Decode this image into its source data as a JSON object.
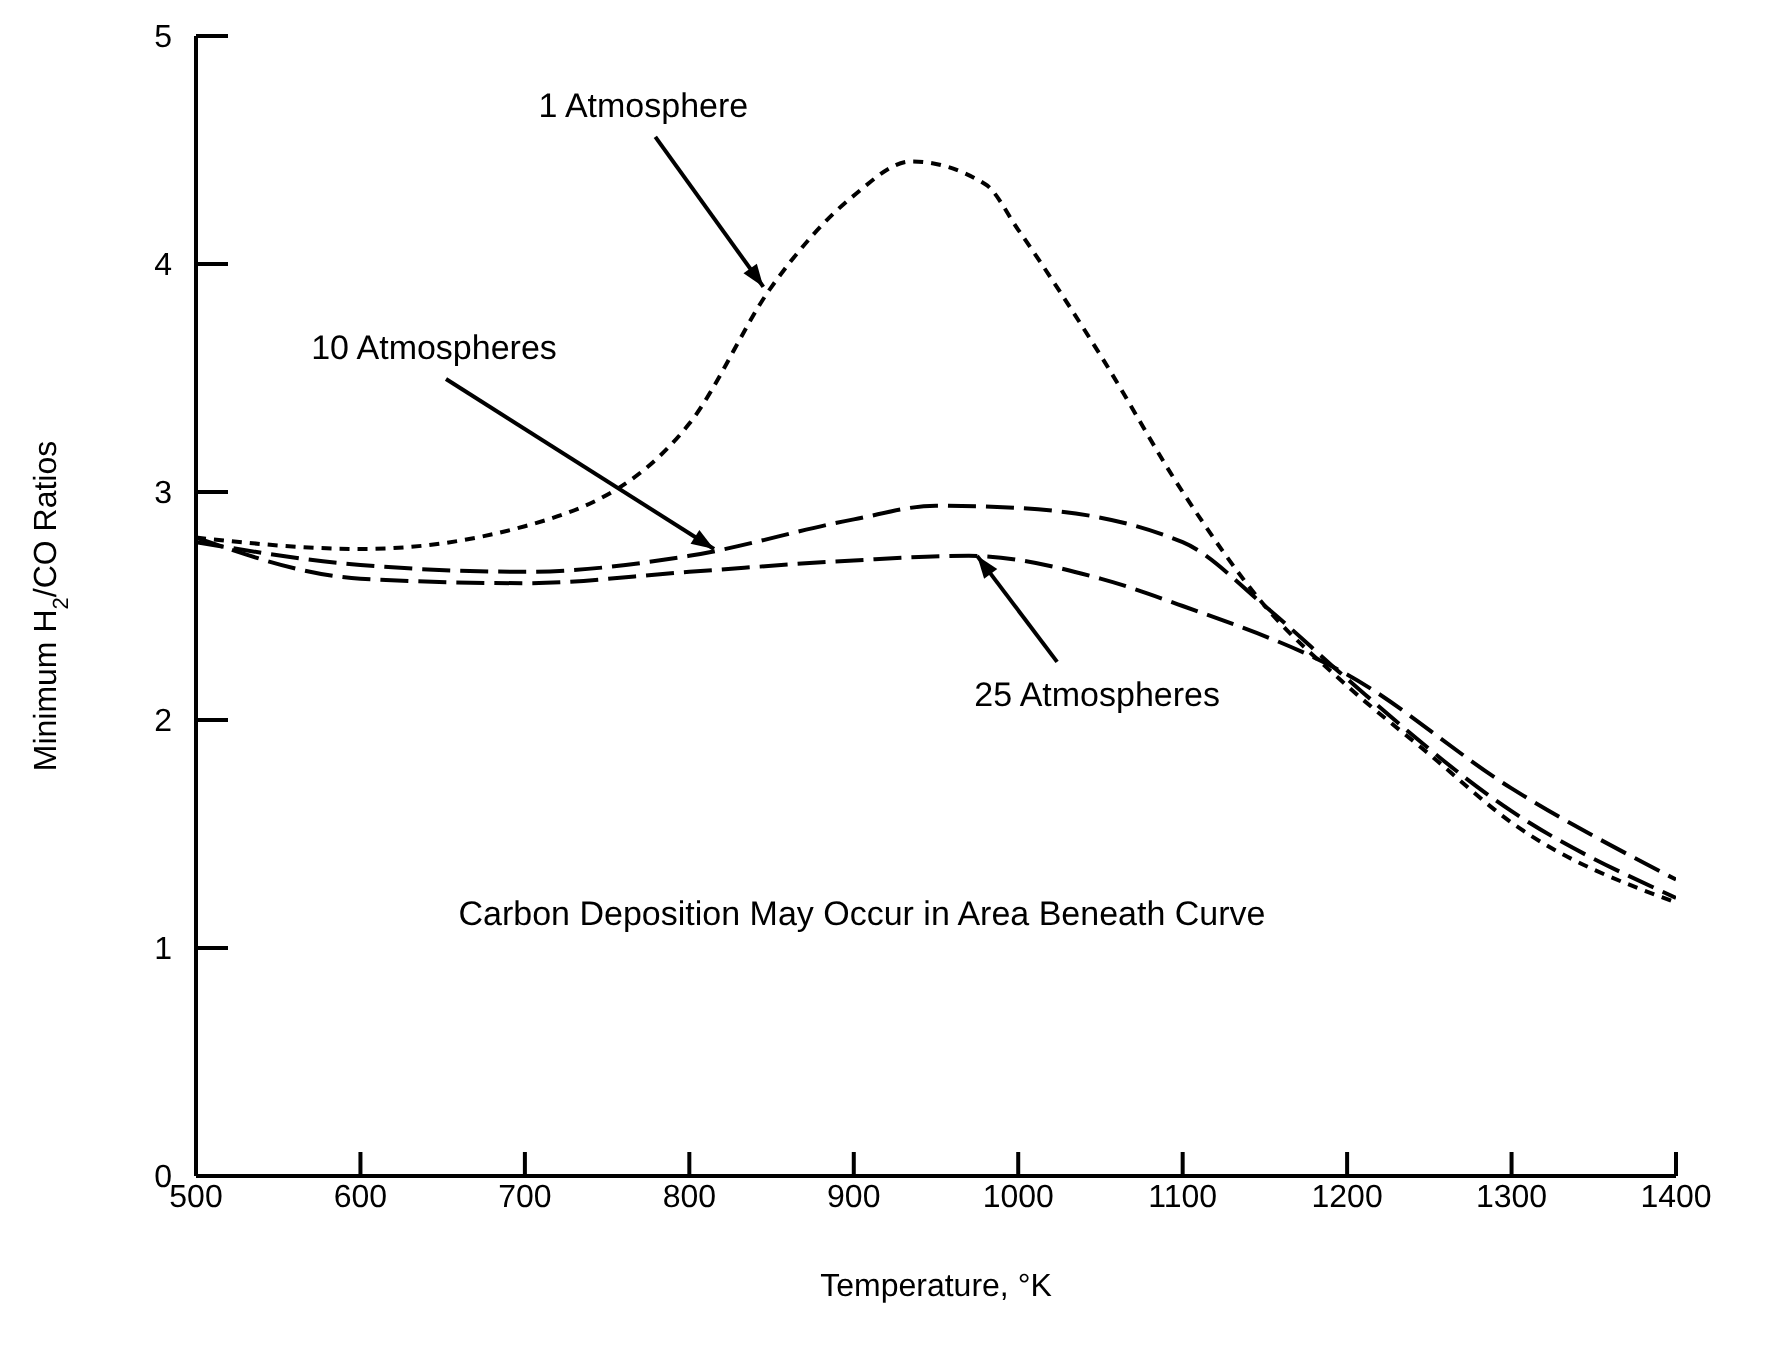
{
  "chart_data": {
    "type": "line",
    "xlabel": "Temperature, °K",
    "ylabel": "Minimum H$_{2}$/CO Ratios",
    "xlim": [
      500,
      1400
    ],
    "ylim": [
      0,
      5
    ],
    "xticks": [
      500,
      600,
      700,
      800,
      900,
      1000,
      1100,
      1200,
      1300,
      1400
    ],
    "yticks": [
      0,
      1,
      2,
      3,
      4,
      5
    ],
    "marker": "none",
    "series": [
      {
        "color": "#000000",
        "line_style": "dotted",
        "x": [
          500,
          600,
          700,
          800,
          850,
          900,
          935,
          980,
          1000,
          1050,
          1100,
          1150,
          1200,
          1250,
          1300,
          1400
        ],
        "values": [
          2.8,
          2.75,
          2.85,
          3.3,
          3.9,
          4.3,
          4.45,
          4.35,
          4.15,
          3.6,
          3.0,
          2.5,
          2.15,
          1.85,
          1.55,
          1.2
        ]
      },
      {
        "color": "#000000",
        "line_style": "dashed",
        "x": [
          500,
          600,
          700,
          800,
          900,
          950,
          1000,
          1100,
          1150,
          1200,
          1300,
          1400
        ],
        "values": [
          2.78,
          2.68,
          2.65,
          2.72,
          2.88,
          2.94,
          2.93,
          2.78,
          2.5,
          2.18,
          1.6,
          1.22
        ]
      },
      {
        "color": "#000000",
        "line_style": "dashed",
        "x": [
          500,
          600,
          700,
          800,
          900,
          970,
          1050,
          1100,
          1200,
          1300,
          1400
        ],
        "values": [
          2.8,
          2.62,
          2.6,
          2.65,
          2.7,
          2.72,
          2.62,
          2.5,
          2.2,
          1.7,
          1.3
        ]
      }
    ],
    "annotations": [
      {
        "text": "1 Atmosphere",
        "x": 845,
        "y": 3.9
      },
      {
        "text": "10 Atmospheres",
        "x": 815,
        "y": 2.75
      },
      {
        "text": "25 Atmospheres",
        "x": 975,
        "y": 2.72
      },
      "Carbon Deposition May Occur in Area Beneath Curve"
    ]
  }
}
